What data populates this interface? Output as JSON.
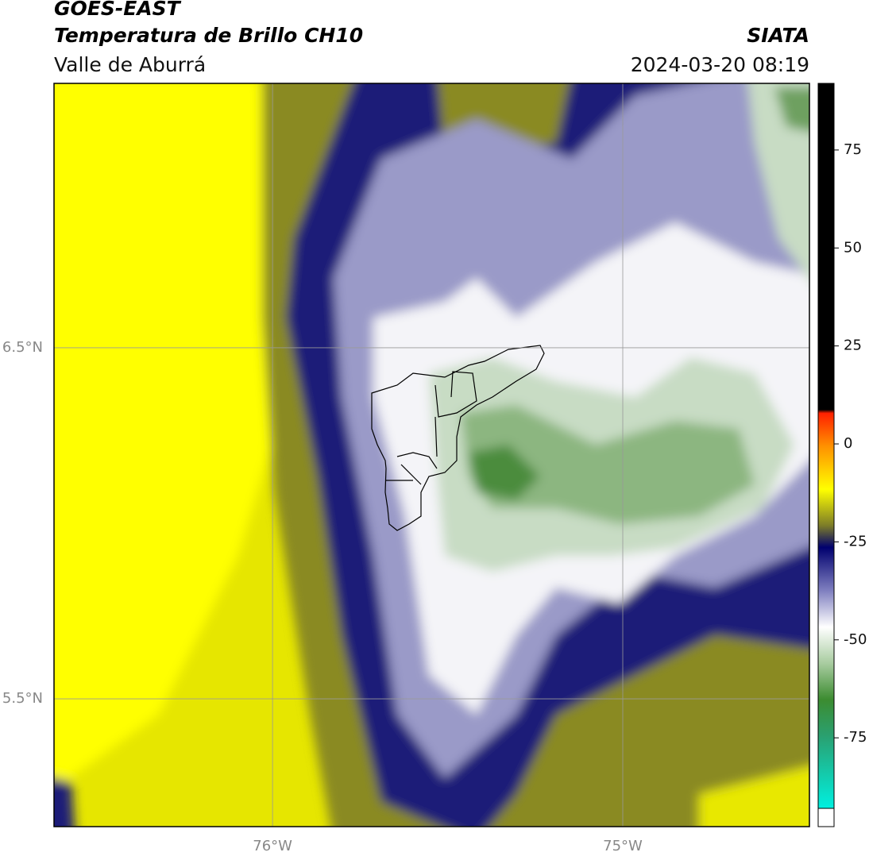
{
  "header": {
    "title": "GOES-EAST",
    "subtitle": "Temperatura de Brillo CH10",
    "region": "Valle de Aburrá",
    "source": "SIATA",
    "timestamp": "2024-03-20 08:19"
  },
  "map": {
    "xlim": [
      -76.624,
      -74.467
    ],
    "ylim": [
      5.136,
      7.253
    ],
    "xticks": [
      {
        "value": -76,
        "label": "76°W"
      },
      {
        "value": -75,
        "label": "75°W"
      }
    ],
    "yticks": [
      {
        "value": 6.5,
        "label": "6.5°N"
      },
      {
        "value": 5.5,
        "label": "5.5°N"
      }
    ]
  },
  "colorbar": {
    "range": [
      -93,
      92
    ],
    "ticks": [
      75,
      50,
      25,
      0,
      -25,
      -50,
      -75
    ]
  }
}
